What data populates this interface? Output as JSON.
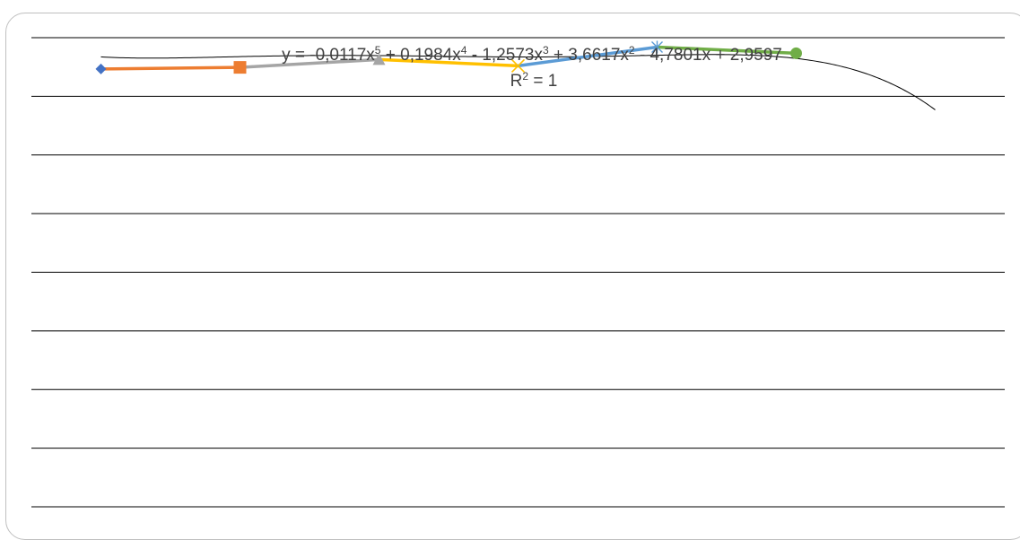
{
  "chart_data": {
    "type": "line",
    "title": "",
    "xlabel": "",
    "ylabel": "",
    "grid": true,
    "legend": "none",
    "ylim": [
      -28.0,
      2.0
    ],
    "xlim": [
      0.5,
      7.5
    ],
    "series": [
      {
        "color": "#ED7D31",
        "marker": "diamond",
        "marker_color": "#4472C4",
        "points": [
          [
            1,
            0.0
          ],
          [
            2,
            0.1
          ]
        ]
      },
      {
        "color": "#A5A5A5",
        "marker": "square",
        "marker_color": "#ED7D31",
        "points": [
          [
            2,
            0.1
          ],
          [
            3,
            0.6
          ]
        ]
      },
      {
        "color": "#FFC000",
        "marker": "triangle",
        "marker_color": "#A5A5A5",
        "points": [
          [
            3,
            0.6
          ],
          [
            4,
            0.2
          ]
        ]
      },
      {
        "color": "#5B9BD5",
        "marker": "x",
        "marker_color": "#FFC000",
        "points": [
          [
            4,
            0.2
          ],
          [
            5,
            1.4
          ]
        ]
      },
      {
        "color": "#70AD47",
        "marker": "star",
        "marker_color": "#5B9BD5",
        "points": [
          [
            5,
            1.4
          ],
          [
            6,
            1.0
          ]
        ]
      },
      {
        "color": "#70AD47",
        "marker": "circle",
        "marker_color": "#70AD47",
        "points": [
          [
            6,
            1.0
          ]
        ]
      }
    ],
    "trendline": {
      "type": "polynomial",
      "order": 5,
      "color": "#000000",
      "x_range": [
        1,
        7.0
      ],
      "coefficients": [
        -0.0117,
        0.1984,
        -1.2573,
        3.6617,
        -4.7801,
        2.9597
      ],
      "equation_parts": [
        "y = -0,0117x",
        "5",
        " + 0,1984x",
        "4",
        " - 1,2573x",
        "3",
        " + 3,6617x",
        "2",
        " - 4,7801x + 2,9597"
      ],
      "r2_parts": [
        "R",
        "2",
        " = 1"
      ]
    }
  }
}
